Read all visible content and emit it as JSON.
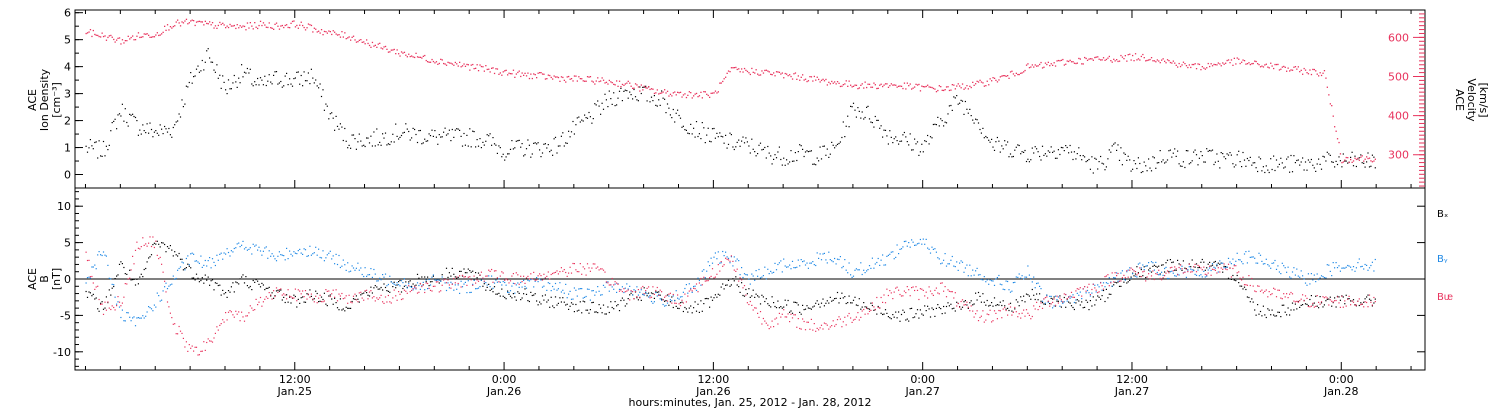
{
  "chart_data": {
    "type": "scatter",
    "x_label": "hours:minutes, Jan. 25, 2012 - Jan. 28, 2012",
    "x_ticks": [
      {
        "hours": 12,
        "top": "12:00",
        "bottom": "Jan.25"
      },
      {
        "hours": 24,
        "top": "0:00",
        "bottom": "Jan.26"
      },
      {
        "hours": 36,
        "top": "12:00",
        "bottom": "Jan.26"
      },
      {
        "hours": 48,
        "top": "0:00",
        "bottom": "Jan.27"
      },
      {
        "hours": 60,
        "top": "12:00",
        "bottom": "Jan.27"
      },
      {
        "hours": 72,
        "top": "0:00",
        "bottom": "Jan.28"
      }
    ],
    "x_range_hours": [
      -0.6,
      76.8
    ],
    "panels": [
      {
        "id": "density-velocity",
        "left_axis": {
          "title_lines": [
            "ACE",
            "Ion Density",
            "[cm⁻³]"
          ],
          "range": [
            -0.5,
            6.1
          ],
          "ticks": [
            0,
            1,
            2,
            3,
            4,
            5,
            6
          ]
        },
        "right_axis": {
          "title_lines": [
            "ACE",
            "Velocity",
            "[km/s]"
          ],
          "range": [
            215,
            670
          ],
          "ticks": [
            300,
            400,
            500,
            600
          ],
          "color": "#e8335d"
        },
        "series": [
          {
            "name": "Ion Density",
            "color": "#000000",
            "axis": "left",
            "x_hours": [
              0,
              1,
              2,
              3,
              4,
              5,
              6,
              7,
              8,
              9,
              10,
              11,
              12,
              13,
              14,
              15,
              16,
              17,
              18,
              19,
              20,
              21,
              22,
              23,
              24,
              25,
              26,
              27,
              28,
              29,
              30,
              31,
              32,
              33,
              34,
              35,
              36,
              37,
              38,
              39,
              40,
              41,
              42,
              43,
              44,
              45,
              46,
              47,
              48,
              49,
              50,
              51,
              52,
              53,
              54,
              55,
              56,
              57,
              58,
              59,
              60,
              61,
              62,
              63,
              64,
              65,
              66,
              67,
              68,
              69,
              70,
              71,
              72,
              73,
              74
            ],
            "y": [
              1.0,
              0.9,
              2.4,
              1.8,
              1.6,
              1.7,
              3.5,
              4.5,
              3.2,
              3.8,
              3.3,
              3.6,
              3.5,
              3.7,
              2.2,
              1.3,
              1.3,
              1.4,
              1.6,
              1.5,
              1.4,
              1.4,
              1.4,
              1.3,
              0.9,
              1.0,
              1.0,
              1.1,
              1.7,
              2.2,
              2.8,
              3.1,
              3.0,
              2.8,
              2.1,
              1.7,
              1.4,
              1.2,
              1.1,
              0.8,
              0.7,
              0.8,
              0.7,
              1.0,
              2.5,
              2.2,
              1.5,
              1.3,
              1.0,
              2.0,
              2.8,
              2.2,
              1.1,
              1.0,
              0.8,
              0.9,
              1.0,
              0.7,
              0.3,
              0.9,
              0.3,
              0.4,
              0.8,
              0.6,
              0.7,
              0.6,
              0.6,
              0.5,
              0.4,
              0.4,
              0.4,
              0.5,
              0.5,
              0.5,
              0.5
            ]
          },
          {
            "name": "Velocity",
            "color": "#e8335d",
            "axis": "right",
            "x_hours": [
              0,
              1,
              2,
              3,
              4,
              5,
              6,
              7,
              8,
              9,
              10,
              11,
              12,
              13,
              14,
              15,
              16,
              17,
              18,
              19,
              20,
              21,
              22,
              23,
              24,
              25,
              26,
              27,
              28,
              29,
              30,
              31,
              32,
              33,
              34,
              35,
              36,
              37,
              38,
              39,
              40,
              41,
              42,
              43,
              44,
              45,
              46,
              47,
              48,
              49,
              50,
              51,
              52,
              53,
              54,
              55,
              56,
              57,
              58,
              59,
              60,
              61,
              62,
              63,
              64,
              65,
              66,
              67,
              68,
              69,
              70,
              71,
              72,
              73,
              74
            ],
            "y": [
              615,
              605,
              592,
              605,
              610,
              636,
              640,
              634,
              630,
              628,
              634,
              630,
              636,
              624,
              612,
              605,
              590,
              575,
              562,
              552,
              543,
              535,
              527,
              520,
              512,
              506,
              503,
              498,
              495,
              492,
              488,
              482,
              470,
              460,
              458,
              455,
              455,
              518,
              515,
              512,
              505,
              500,
              492,
              485,
              480,
              478,
              480,
              476,
              473,
              470,
              475,
              480,
              492,
              505,
              525,
              530,
              538,
              542,
              545,
              547,
              551,
              550,
              540,
              530,
              526,
              535,
              540,
              533,
              528,
              520,
              515,
              510,
              290,
              292,
              293
            ]
          }
        ]
      },
      {
        "id": "magnetic-field",
        "left_axis": {
          "title_lines": [
            "ACE",
            "B",
            "[nT]"
          ],
          "range": [
            -12.5,
            12.5
          ],
          "ticks": [
            -10,
            -5,
            0,
            5,
            10
          ]
        },
        "series": [
          {
            "name": "Bₓ",
            "color": "#000000",
            "x_hours": [
              0,
              1,
              2,
              3,
              4,
              5,
              6,
              7,
              8,
              9,
              10,
              11,
              12,
              13,
              14,
              15,
              16,
              17,
              18,
              19,
              20,
              21,
              22,
              23,
              24,
              25,
              26,
              27,
              28,
              29,
              30,
              31,
              32,
              33,
              34,
              35,
              36,
              37,
              38,
              39,
              40,
              41,
              42,
              43,
              44,
              45,
              46,
              47,
              48,
              49,
              50,
              51,
              52,
              53,
              54,
              55,
              56,
              57,
              58,
              59,
              60,
              61,
              62,
              63,
              64,
              65,
              66,
              67,
              68,
              69,
              70,
              71,
              72,
              73,
              74
            ],
            "y": [
              -2.0,
              -4.0,
              2.0,
              -1.0,
              5.0,
              4.0,
              1.0,
              0.0,
              -2.0,
              0.0,
              -1.0,
              -2.0,
              -3.0,
              -2.0,
              -3.0,
              -3.5,
              -2.0,
              -1.0,
              -1.0,
              0.0,
              0.0,
              1.0,
              1.0,
              -1.0,
              -2.0,
              -2.0,
              -3.0,
              -3.0,
              -3.5,
              -4.0,
              -4.0,
              -3.0,
              -2.0,
              -2.5,
              -3.5,
              -4.0,
              -3.0,
              0.0,
              -2.0,
              -3.0,
              -3.5,
              -4.0,
              -3.0,
              -2.5,
              -3.0,
              -4.0,
              -4.5,
              -5.0,
              -4.5,
              -4.0,
              -4.0,
              -2.5,
              -3.0,
              -4.0,
              -2.0,
              -3.0,
              -3.0,
              -3.5,
              -3.0,
              -1.0,
              1.0,
              1.0,
              2.0,
              2.0,
              2.0,
              1.5,
              0.5,
              -4.0,
              -4.5,
              -4.0,
              -3.0,
              -3.0,
              -3.0,
              -3.0,
              -3.0
            ]
          },
          {
            "name": "Bᵧ",
            "color": "#1e88e5",
            "x_hours": [
              0,
              1,
              2,
              3,
              4,
              5,
              6,
              7,
              8,
              9,
              10,
              11,
              12,
              13,
              14,
              15,
              16,
              17,
              18,
              19,
              20,
              21,
              22,
              23,
              24,
              25,
              26,
              27,
              28,
              29,
              30,
              31,
              32,
              33,
              34,
              35,
              36,
              37,
              38,
              39,
              40,
              41,
              42,
              43,
              44,
              45,
              46,
              47,
              48,
              49,
              50,
              51,
              52,
              53,
              54,
              55,
              56,
              57,
              58,
              59,
              60,
              61,
              62,
              63,
              64,
              65,
              66,
              67,
              68,
              69,
              70,
              71,
              72,
              73,
              74
            ],
            "y": [
              0.0,
              4.0,
              -5.0,
              -6.0,
              -3.0,
              0.0,
              3.0,
              2.0,
              4.0,
              4.5,
              4.0,
              3.0,
              4.0,
              4.0,
              3.0,
              2.0,
              1.0,
              0.0,
              0.0,
              -1.0,
              0.0,
              -1.0,
              -1.0,
              0.0,
              -1.0,
              -1.0,
              -0.5,
              -1.0,
              -2.0,
              -2.0,
              -1.0,
              -1.0,
              -2.0,
              -3.0,
              -2.0,
              -1.0,
              3.0,
              3.0,
              0.0,
              1.0,
              2.0,
              2.0,
              3.0,
              3.0,
              1.0,
              2.0,
              3.0,
              5.0,
              5.0,
              3.0,
              2.0,
              1.0,
              0.0,
              -1.0,
              1.0,
              -3.0,
              -3.0,
              -2.0,
              -1.0,
              0.0,
              1.0,
              2.0,
              1.0,
              1.0,
              1.0,
              2.0,
              3.0,
              3.0,
              2.0,
              1.0,
              0.0,
              1.0,
              2.0,
              2.0,
              2.0
            ]
          },
          {
            "name": "Bᵫ",
            "color": "#e8335d",
            "x_hours": [
              0,
              1,
              2,
              3,
              4,
              5,
              6,
              7,
              8,
              9,
              10,
              11,
              12,
              13,
              14,
              15,
              16,
              17,
              18,
              19,
              20,
              21,
              22,
              23,
              24,
              25,
              26,
              27,
              28,
              29,
              30,
              31,
              32,
              33,
              34,
              35,
              36,
              37,
              38,
              39,
              40,
              41,
              42,
              43,
              44,
              45,
              46,
              47,
              48,
              49,
              50,
              51,
              52,
              53,
              54,
              55,
              56,
              57,
              58,
              59,
              60,
              61,
              62,
              63,
              64,
              65,
              66,
              67,
              68,
              69,
              70,
              71,
              72,
              73,
              74
            ],
            "y": [
              3.0,
              -4.0,
              -3.0,
              5.0,
              5.0,
              -6.0,
              -10.0,
              -9.0,
              -5.0,
              -5.0,
              -3.0,
              -1.5,
              -2.0,
              -2.5,
              -2.0,
              -2.5,
              -2.0,
              -3.0,
              -2.0,
              -1.0,
              -1.0,
              -0.5,
              0.0,
              0.5,
              0.5,
              0.0,
              0.5,
              1.0,
              1.5,
              1.5,
              0.0,
              -2.0,
              -1.5,
              -2.0,
              -3.0,
              -1.0,
              1.0,
              3.0,
              -3.0,
              -6.0,
              -5.0,
              -6.0,
              -6.5,
              -6.0,
              -5.0,
              -4.0,
              -2.0,
              -1.5,
              -2.0,
              -1.0,
              -3.0,
              -5.0,
              -5.0,
              -4.0,
              -5.0,
              -3.0,
              -2.5,
              -1.5,
              -1.0,
              0.5,
              1.0,
              0.5,
              1.0,
              1.5,
              1.0,
              1.5,
              1.0,
              -1.0,
              -2.0,
              -2.5,
              -3.0,
              -3.0,
              -3.0,
              -3.0,
              -3.0
            ]
          }
        ],
        "legend": {
          "position": "right",
          "entries": [
            "Bₓ",
            "Bᵧ",
            "Bᵫ"
          ]
        }
      }
    ]
  }
}
